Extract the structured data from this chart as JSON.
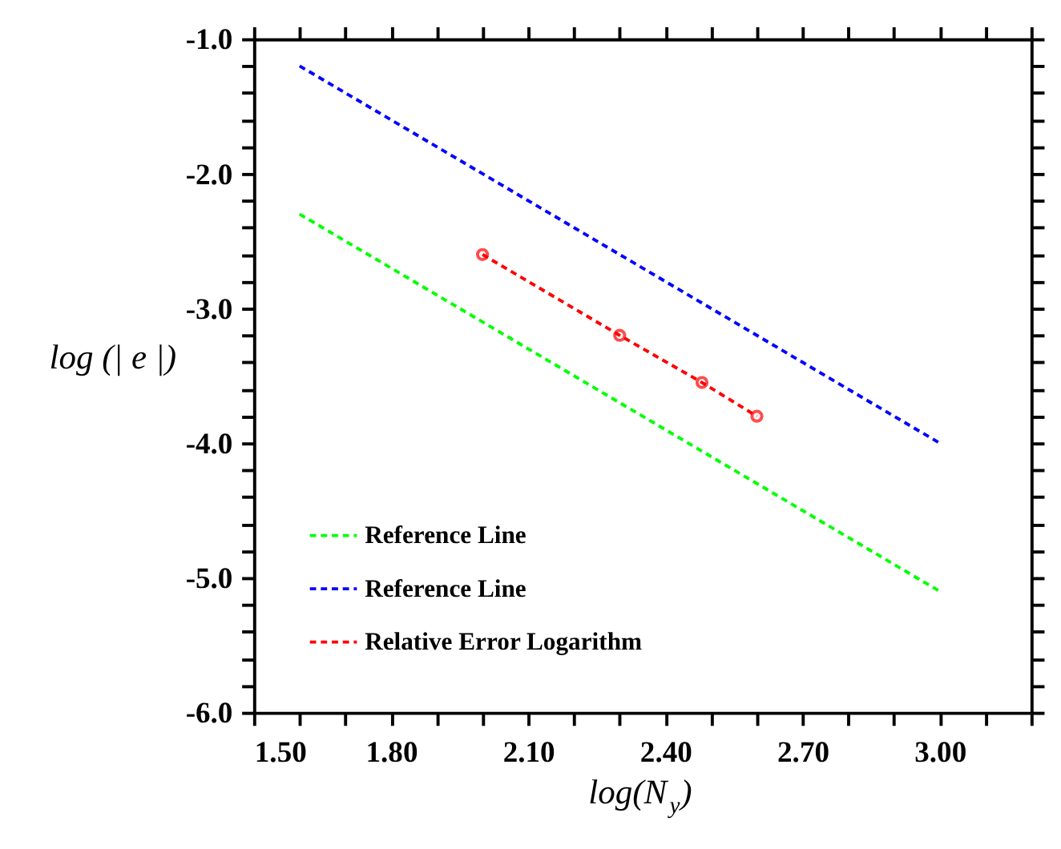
{
  "chart_data": {
    "type": "line",
    "xlabel": "log(N$_{y}$)",
    "ylabel": "log (| e |)",
    "xlim": [
      1.5,
      3.2
    ],
    "ylim": [
      -6.0,
      -1.0
    ],
    "xticks": [
      {
        "value": 1.5,
        "label": "1.50"
      },
      {
        "value": 1.6,
        "label": null
      },
      {
        "value": 1.7,
        "label": null
      },
      {
        "value": 1.8,
        "label": "1.80"
      },
      {
        "value": 1.9,
        "label": null
      },
      {
        "value": 2.0,
        "label": null
      },
      {
        "value": 2.1,
        "label": "2.10"
      },
      {
        "value": 2.2,
        "label": null
      },
      {
        "value": 2.3,
        "label": null
      },
      {
        "value": 2.4,
        "label": "2.40"
      },
      {
        "value": 2.5,
        "label": null
      },
      {
        "value": 2.6,
        "label": null
      },
      {
        "value": 2.7,
        "label": "2.70"
      },
      {
        "value": 2.8,
        "label": null
      },
      {
        "value": 2.9,
        "label": null
      },
      {
        "value": 3.0,
        "label": "3.00"
      },
      {
        "value": 3.1,
        "label": null
      },
      {
        "value": 3.2,
        "label": null
      }
    ],
    "yticks": [
      {
        "value": -6.0,
        "label": "-6.0"
      },
      {
        "value": -5.8,
        "label": null
      },
      {
        "value": -5.6,
        "label": null
      },
      {
        "value": -5.4,
        "label": null
      },
      {
        "value": -5.2,
        "label": null
      },
      {
        "value": -5.0,
        "label": "-5.0"
      },
      {
        "value": -4.8,
        "label": null
      },
      {
        "value": -4.6,
        "label": null
      },
      {
        "value": -4.4,
        "label": null
      },
      {
        "value": -4.2,
        "label": null
      },
      {
        "value": -4.0,
        "label": "-4.0"
      },
      {
        "value": -3.8,
        "label": null
      },
      {
        "value": -3.6,
        "label": null
      },
      {
        "value": -3.4,
        "label": null
      },
      {
        "value": -3.2,
        "label": null
      },
      {
        "value": -3.0,
        "label": "-3.0"
      },
      {
        "value": -2.8,
        "label": null
      },
      {
        "value": -2.6,
        "label": null
      },
      {
        "value": -2.4,
        "label": null
      },
      {
        "value": -2.2,
        "label": null
      },
      {
        "value": -2.0,
        "label": "-2.0"
      },
      {
        "value": -1.8,
        "label": null
      },
      {
        "value": -1.6,
        "label": null
      },
      {
        "value": -1.4,
        "label": null
      },
      {
        "value": -1.2,
        "label": null
      },
      {
        "value": -1.0,
        "label": "-1.0"
      }
    ],
    "grid": false,
    "legend": "bottom left",
    "line_style": "dashed",
    "series": [
      {
        "name": "Reference Line",
        "color": "#00ff00",
        "x": [
          1.6,
          3.0
        ],
        "values": [
          -2.3,
          -5.1
        ],
        "marker": "none"
      },
      {
        "name": "Reference Line",
        "color": "#0000ff",
        "x": [
          1.6,
          3.0
        ],
        "values": [
          -1.2,
          -4.0
        ],
        "marker": "none"
      },
      {
        "name": "Relative Error Logarithm",
        "color": "#ff0000",
        "x": [
          2.0,
          2.3,
          2.48,
          2.6
        ],
        "values": [
          -2.6,
          -3.2,
          -3.55,
          -3.8
        ],
        "marker": "circle"
      }
    ]
  }
}
